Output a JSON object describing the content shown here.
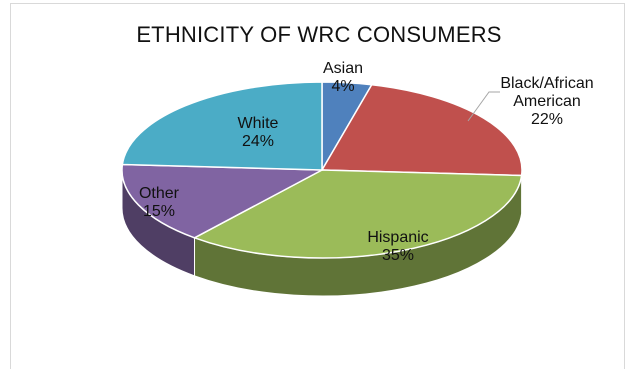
{
  "chart_data": {
    "type": "pie",
    "style": "3d",
    "title": "ETHNICITY  OF  WRC CONSUMERS",
    "slices": [
      {
        "label": "Asian",
        "value": 4,
        "value_label": "4%",
        "color": "#4f81bd"
      },
      {
        "label": "Black/African American",
        "value": 22,
        "value_label": "22%",
        "color": "#c0504d"
      },
      {
        "label": "Hispanic",
        "value": 35,
        "value_label": "35%",
        "color": "#9bbb59"
      },
      {
        "label": "Other",
        "value": 15,
        "value_label": "15%",
        "color": "#8064a2"
      },
      {
        "label": "White",
        "value": 24,
        "value_label": "24%",
        "color": "#4bacc6"
      }
    ]
  }
}
